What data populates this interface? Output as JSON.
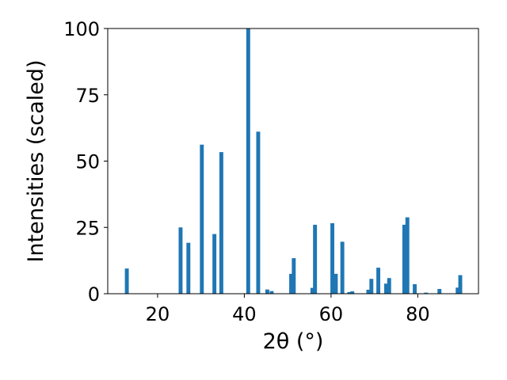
{
  "chart_data": {
    "type": "bar",
    "xlabel": "2θ (°)",
    "ylabel": "Intensities (scaled)",
    "xlim": [
      8.5,
      94
    ],
    "ylim": [
      0,
      100
    ],
    "xticks": [
      20,
      40,
      60,
      80
    ],
    "yticks": [
      0,
      25,
      50,
      75,
      100
    ],
    "bar_color": "#1f77b4",
    "bar_width": 0.9,
    "grid": false,
    "x": [
      12.9,
      25.3,
      27.1,
      30.2,
      33.1,
      34.7,
      40.9,
      43.2,
      45.3,
      46.3,
      50.8,
      51.4,
      55.7,
      56.3,
      60.3,
      61.1,
      62.6,
      64.2,
      64.9,
      68.6,
      69.3,
      70.9,
      72.7,
      73.4,
      76.9,
      77.6,
      79.3,
      81.9,
      85.0,
      89.2,
      89.8
    ],
    "values": [
      9.5,
      25.0,
      19.2,
      56.2,
      22.5,
      53.4,
      100.0,
      61.1,
      1.6,
      1.0,
      7.5,
      13.4,
      2.2,
      26.0,
      26.6,
      7.5,
      19.6,
      0.6,
      0.9,
      1.5,
      5.6,
      9.8,
      3.8,
      5.9,
      26.0,
      28.8,
      3.6,
      0.4,
      1.8,
      2.3,
      7.0
    ]
  }
}
